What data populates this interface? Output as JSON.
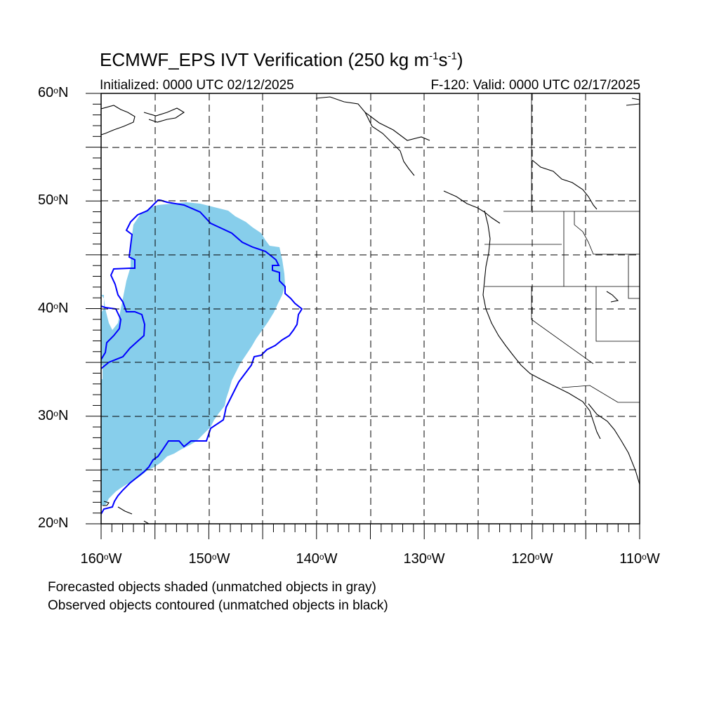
{
  "header": {
    "title_main": "ECMWF_EPS IVT Verification (250 kg m",
    "title_exp1": "-1",
    "title_mid": "s",
    "title_exp2": "-1",
    "title_end": ")",
    "initialized": "Initialized: 0000 UTC 02/12/2025",
    "valid": "F-120: Valid: 0000 UTC 02/17/2025"
  },
  "map": {
    "lon_range": [
      -160,
      -110
    ],
    "lat_range": [
      20,
      60
    ],
    "grid_dashed": true,
    "lat_labels": [
      "60",
      "50",
      "40",
      "30",
      "20"
    ],
    "lat_suffix": "N",
    "lon_labels": [
      "160",
      "150",
      "140",
      "130",
      "120",
      "110"
    ],
    "lon_suffix": "W",
    "degree_symbol": "o",
    "forecast_color": "#87CEEB",
    "observed_color": "#0000FF",
    "coast_color": "#000000"
  },
  "legend": {
    "line1": "Forecasted objects shaded (unmatched objects in gray)",
    "line2": "Observed objects contoured (unmatched objects in black)"
  }
}
